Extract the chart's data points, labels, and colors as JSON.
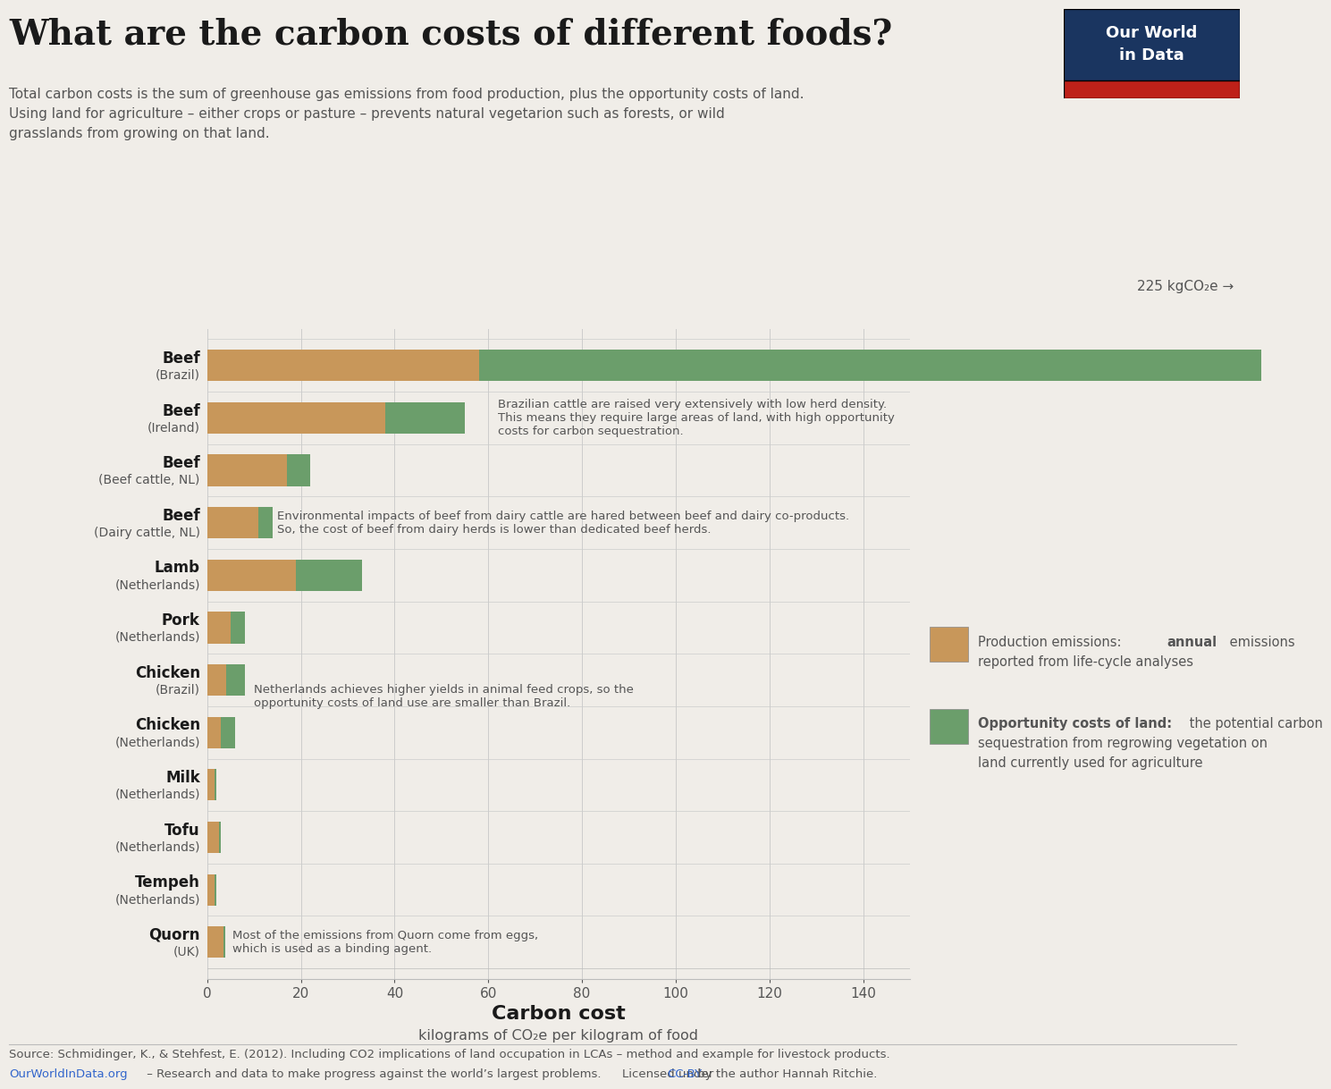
{
  "categories": [
    [
      "Beef",
      "(Brazil)"
    ],
    [
      "Beef",
      "(Ireland)"
    ],
    [
      "Beef",
      "(Beef cattle, NL)"
    ],
    [
      "Beef",
      "(Dairy cattle, NL)"
    ],
    [
      "Lamb",
      "(Netherlands)"
    ],
    [
      "Pork",
      "(Netherlands)"
    ],
    [
      "Chicken",
      "(Brazil)"
    ],
    [
      "Chicken",
      "(Netherlands)"
    ],
    [
      "Milk",
      "(Netherlands)"
    ],
    [
      "Tofu",
      "(Netherlands)"
    ],
    [
      "Tempeh",
      "(Netherlands)"
    ],
    [
      "Quorn",
      "(UK)"
    ]
  ],
  "production": [
    58.0,
    38.0,
    17.0,
    11.0,
    19.0,
    5.0,
    4.0,
    3.0,
    1.5,
    2.5,
    1.5,
    3.5
  ],
  "opportunity": [
    167.0,
    17.0,
    5.0,
    3.0,
    14.0,
    3.0,
    4.0,
    3.0,
    0.5,
    0.5,
    0.5,
    0.3
  ],
  "prod_color": "#C8975A",
  "opp_color": "#6B9E6B",
  "bg_color": "#F0EDE8",
  "title": "What are the carbon costs of different foods?",
  "subtitle": "Total carbon costs is the sum of greenhouse gas emissions from food production, plus the opportunity costs of land.\nUsing land for agriculture – either crops or pasture – prevents natural vegetarion such as forests, or wild\ngrasslands from growing on that land.",
  "xlabel_main": "Carbon cost",
  "xlabel_sub": "kilograms of CO₂e per kilogram of food",
  "beef_brazil_annotation": "Brazilian cattle are raised very extensively with low herd density.\nThis means they require large areas of land, with high opportunity\ncosts for carbon sequestration.",
  "beef_dairy_annotation": "Environmental impacts of beef from dairy cattle are hared between beef and dairy co-products.\nSo, the cost of beef from dairy herds is lower than dedicated beef herds.",
  "chicken_annotation": "Netherlands achieves higher yields in animal feed crops, so the\nopportunity costs of land use are smaller than Brazil.",
  "quorn_annotation": "Most of the emissions from Quorn come from eggs,\nwhich is used as a binding agent.",
  "legend_prod_label": "Production emissions: ",
  "legend_prod_bold": "annual",
  "legend_prod_rest": " emissions\nreported from life-cycle analyses",
  "legend_opp_label": "Opportunity costs of land:",
  "legend_opp_rest": " the potential carbon\nsequestration from regrowing vegetation on\nland currently used for agriculture",
  "source_text": "Source: Schmidinger, K., & Stehfest, E. (2012). Including CO2 implications of land occupation in LCAs – method and example for livestock products.",
  "owid_text": "OurWorldInData.org",
  "owid_suffix": " – Research and data to make progress against the world’s largest problems.",
  "license_text": "Licensed under ",
  "ccby_text": "CC-BY",
  "author_text": " by the author Hannah Ritchie.",
  "arrow_label": "225 kgCO₂e →",
  "title_color": "#1a1a1a",
  "text_color": "#555555",
  "annotation_color": "#555555",
  "owid_dark": "#1a3560",
  "owid_red": "#be2119"
}
